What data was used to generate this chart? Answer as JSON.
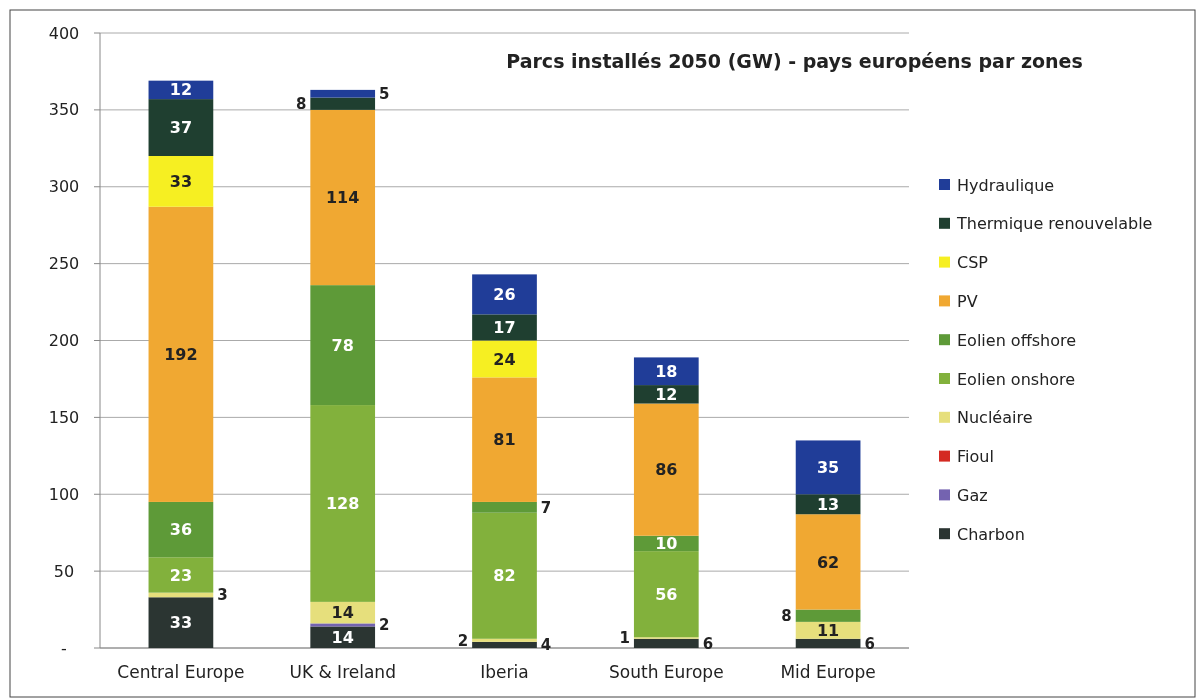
{
  "chart_data": {
    "type": "bar",
    "stacked": true,
    "title": "Parcs installés 2050 (GW) - pays européens par zones",
    "categories": [
      "Central Europe",
      "UK & Ireland",
      "Iberia",
      "South Europe",
      "Mid Europe"
    ],
    "series": [
      {
        "name": "Charbon",
        "color": "#2b3532",
        "values": [
          33,
          14,
          4,
          6,
          6
        ]
      },
      {
        "name": "Gaz",
        "color": "#7463b0",
        "values": [
          null,
          2,
          null,
          null,
          null
        ]
      },
      {
        "name": "Fioul",
        "color": "#d42a22",
        "values": [
          null,
          null,
          null,
          null,
          null
        ]
      },
      {
        "name": "Nucléaire",
        "color": "#e6df7c",
        "values": [
          3,
          14,
          2,
          1,
          11
        ]
      },
      {
        "name": "Eolien onshore",
        "color": "#82b13c",
        "values": [
          23,
          128,
          82,
          56,
          null
        ]
      },
      {
        "name": "Eolien offshore",
        "color": "#5e9a38",
        "values": [
          36,
          78,
          7,
          10,
          8
        ]
      },
      {
        "name": "PV",
        "color": "#f0a832",
        "values": [
          192,
          114,
          81,
          86,
          62
        ]
      },
      {
        "name": "CSP",
        "color": "#f6ef22",
        "values": [
          33,
          null,
          24,
          null,
          null
        ]
      },
      {
        "name": "Thermique renouvelable",
        "color": "#1f3f30",
        "values": [
          37,
          8,
          17,
          12,
          13
        ]
      },
      {
        "name": "Hydraulique",
        "color": "#203d98",
        "values": [
          12,
          5,
          26,
          18,
          35
        ]
      }
    ],
    "ylim": [
      0,
      400
    ],
    "yticks": [
      {
        "value": 0,
        "label": "-"
      },
      50,
      100,
      150,
      200,
      250,
      300,
      350,
      400
    ],
    "grid": "y",
    "legend": "right",
    "data_labels": true
  }
}
